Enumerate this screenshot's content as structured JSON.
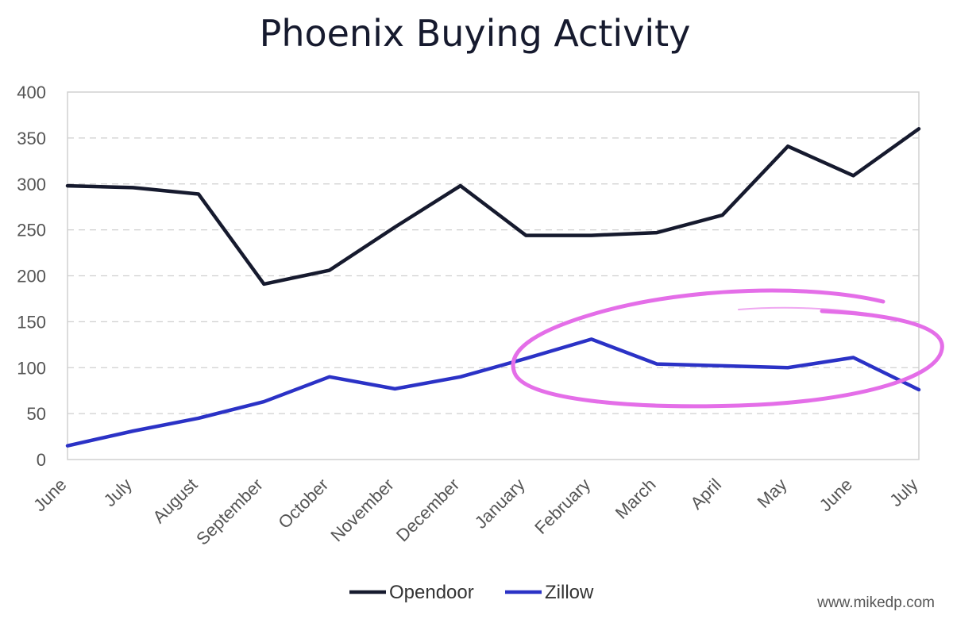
{
  "chart_data": {
    "type": "line",
    "title": "Phoenix Buying Activity",
    "xlabel": "",
    "ylabel": "",
    "categories": [
      "June",
      "July",
      "August",
      "September",
      "October",
      "November",
      "December",
      "January",
      "February",
      "March",
      "April",
      "May",
      "June",
      "July"
    ],
    "ylim": [
      0,
      400
    ],
    "yticks": [
      0,
      50,
      100,
      150,
      200,
      250,
      300,
      350,
      400
    ],
    "grid": true,
    "legend_position": "bottom",
    "series": [
      {
        "name": "Opendoor",
        "color": "#161a2e",
        "values": [
          298,
          296,
          289,
          191,
          206,
          253,
          298,
          244,
          244,
          247,
          266,
          341,
          309,
          360
        ]
      },
      {
        "name": "Zillow",
        "color": "#2b32c6",
        "values": [
          15,
          31,
          45,
          63,
          90,
          77,
          90,
          110,
          131,
          104,
          102,
          100,
          111,
          76
        ]
      }
    ],
    "annotation": {
      "type": "ellipse",
      "color": "#e46ee8",
      "covers_categories": "January to July"
    }
  },
  "watermark": "www.mikedp.com"
}
